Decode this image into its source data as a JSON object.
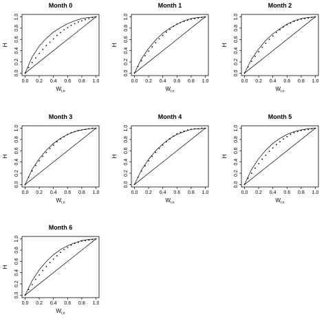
{
  "colors": {
    "background": "#ffffff",
    "foreground": "#000000"
  },
  "chart_data": [
    {
      "type": "scatter",
      "title": "Month 0",
      "xlabel": "W",
      "xlabel_sub": "t,n",
      "ylabel": "H",
      "xlim": [
        0,
        1
      ],
      "ylim": [
        0,
        1
      ],
      "xticks": [
        "0.0",
        "0.2",
        "0.4",
        "0.6",
        "0.8",
        "1.0"
      ],
      "yticks": [
        "0.0",
        "0.2",
        "0.4",
        "0.6",
        "0.8",
        "1.0"
      ],
      "grid": false,
      "legend": "none",
      "series": [
        {
          "kind": "points",
          "x": [
            0.0,
            0.05,
            0.1,
            0.15,
            0.2,
            0.25,
            0.3,
            0.35,
            0.4,
            0.45,
            0.5,
            0.55,
            0.6,
            0.65,
            0.7,
            0.75,
            0.8,
            0.85,
            0.9,
            0.95,
            1.0
          ],
          "y": [
            0.0,
            0.1,
            0.19,
            0.27,
            0.35,
            0.42,
            0.49,
            0.55,
            0.61,
            0.67,
            0.72,
            0.77,
            0.81,
            0.85,
            0.88,
            0.91,
            0.93,
            0.95,
            0.97,
            0.99,
            1.0
          ]
        },
        {
          "kind": "line",
          "x": [
            0.0,
            0.1,
            0.2,
            0.3,
            0.4,
            0.5,
            0.6,
            0.7,
            0.8,
            0.9,
            1.0
          ],
          "y": [
            0.0,
            0.29,
            0.48,
            0.62,
            0.73,
            0.81,
            0.88,
            0.93,
            0.97,
            0.99,
            1.0
          ]
        },
        {
          "kind": "diagonal",
          "x": [
            0,
            1
          ],
          "y": [
            0,
            1
          ]
        }
      ]
    },
    {
      "type": "scatter",
      "title": "Month 1",
      "xlabel": "W",
      "xlabel_sub": "t,n",
      "ylabel": "H",
      "xlim": [
        0,
        1
      ],
      "ylim": [
        0,
        1
      ],
      "xticks": [
        "0.0",
        "0.2",
        "0.4",
        "0.6",
        "0.8",
        "1.0"
      ],
      "yticks": [
        "0.0",
        "0.2",
        "0.4",
        "0.6",
        "0.8",
        "1.0"
      ],
      "grid": false,
      "legend": "none",
      "series": [
        {
          "kind": "points",
          "x": [
            0.0,
            0.05,
            0.1,
            0.15,
            0.2,
            0.25,
            0.3,
            0.35,
            0.4,
            0.45,
            0.5,
            0.55,
            0.6,
            0.65,
            0.7,
            0.75,
            0.8,
            0.85,
            0.9,
            0.95,
            1.0
          ],
          "y": [
            0.0,
            0.12,
            0.22,
            0.31,
            0.39,
            0.47,
            0.54,
            0.61,
            0.67,
            0.73,
            0.78,
            0.83,
            0.87,
            0.9,
            0.92,
            0.94,
            0.96,
            0.97,
            0.98,
            0.99,
            1.0
          ]
        },
        {
          "kind": "line",
          "x": [
            0.0,
            0.1,
            0.2,
            0.3,
            0.4,
            0.5,
            0.6,
            0.7,
            0.8,
            0.9,
            1.0
          ],
          "y": [
            0.0,
            0.26,
            0.44,
            0.59,
            0.71,
            0.8,
            0.87,
            0.93,
            0.97,
            0.99,
            1.0
          ]
        },
        {
          "kind": "diagonal",
          "x": [
            0,
            1
          ],
          "y": [
            0,
            1
          ]
        }
      ]
    },
    {
      "type": "scatter",
      "title": "Month 2",
      "xlabel": "W",
      "xlabel_sub": "t,n",
      "ylabel": "H",
      "xlim": [
        0,
        1
      ],
      "ylim": [
        0,
        1
      ],
      "xticks": [
        "0.0",
        "0.2",
        "0.4",
        "0.6",
        "0.8",
        "1.0"
      ],
      "yticks": [
        "0.0",
        "0.2",
        "0.4",
        "0.6",
        "0.8",
        "1.0"
      ],
      "grid": false,
      "legend": "none",
      "series": [
        {
          "kind": "points",
          "x": [
            0.0,
            0.05,
            0.1,
            0.15,
            0.2,
            0.25,
            0.3,
            0.35,
            0.4,
            0.45,
            0.5,
            0.55,
            0.6,
            0.65,
            0.7,
            0.75,
            0.8,
            0.85,
            0.9,
            0.95,
            1.0
          ],
          "y": [
            0.0,
            0.11,
            0.21,
            0.3,
            0.38,
            0.46,
            0.53,
            0.6,
            0.66,
            0.72,
            0.77,
            0.82,
            0.86,
            0.89,
            0.92,
            0.94,
            0.96,
            0.97,
            0.98,
            0.99,
            1.0
          ]
        },
        {
          "kind": "line",
          "x": [
            0.0,
            0.1,
            0.2,
            0.3,
            0.4,
            0.5,
            0.6,
            0.7,
            0.8,
            0.9,
            1.0
          ],
          "y": [
            0.0,
            0.25,
            0.43,
            0.58,
            0.7,
            0.79,
            0.87,
            0.93,
            0.97,
            0.99,
            1.0
          ]
        },
        {
          "kind": "diagonal",
          "x": [
            0,
            1
          ],
          "y": [
            0,
            1
          ]
        }
      ]
    },
    {
      "type": "scatter",
      "title": "Month 3",
      "xlabel": "W",
      "xlabel_sub": "t,n",
      "ylabel": "H",
      "xlim": [
        0,
        1
      ],
      "ylim": [
        0,
        1
      ],
      "xticks": [
        "0.0",
        "0.2",
        "0.4",
        "0.6",
        "0.8",
        "1.0"
      ],
      "yticks": [
        "0.0",
        "0.2",
        "0.4",
        "0.6",
        "0.8",
        "1.0"
      ],
      "grid": false,
      "legend": "none",
      "series": [
        {
          "kind": "points",
          "x": [
            0.0,
            0.05,
            0.1,
            0.15,
            0.2,
            0.25,
            0.3,
            0.35,
            0.4,
            0.45,
            0.5,
            0.55,
            0.6,
            0.65,
            0.7,
            0.75,
            0.8,
            0.85,
            0.9,
            0.95,
            1.0
          ],
          "y": [
            0.0,
            0.13,
            0.24,
            0.34,
            0.42,
            0.5,
            0.57,
            0.64,
            0.7,
            0.76,
            0.81,
            0.85,
            0.89,
            0.92,
            0.94,
            0.96,
            0.97,
            0.98,
            0.99,
            1.0,
            1.0
          ]
        },
        {
          "kind": "line",
          "x": [
            0.0,
            0.1,
            0.2,
            0.3,
            0.4,
            0.5,
            0.6,
            0.7,
            0.8,
            0.9,
            1.0
          ],
          "y": [
            0.0,
            0.27,
            0.46,
            0.61,
            0.73,
            0.82,
            0.89,
            0.94,
            0.97,
            0.99,
            1.0
          ]
        },
        {
          "kind": "diagonal",
          "x": [
            0,
            1
          ],
          "y": [
            0,
            1
          ]
        }
      ]
    },
    {
      "type": "scatter",
      "title": "Month 4",
      "xlabel": "W",
      "xlabel_sub": "t,n",
      "ylabel": "H",
      "xlim": [
        0,
        1
      ],
      "ylim": [
        0,
        1
      ],
      "xticks": [
        "0.0",
        "0.2",
        "0.4",
        "0.6",
        "0.8",
        "1.0"
      ],
      "yticks": [
        "0.0",
        "0.2",
        "0.4",
        "0.6",
        "0.8",
        "1.0"
      ],
      "grid": false,
      "legend": "none",
      "series": [
        {
          "kind": "points",
          "x": [
            0.0,
            0.05,
            0.1,
            0.15,
            0.2,
            0.25,
            0.3,
            0.35,
            0.4,
            0.45,
            0.5,
            0.55,
            0.6,
            0.65,
            0.7,
            0.75,
            0.8,
            0.85,
            0.9,
            0.95,
            1.0
          ],
          "y": [
            0.0,
            0.13,
            0.24,
            0.33,
            0.42,
            0.5,
            0.57,
            0.64,
            0.7,
            0.76,
            0.81,
            0.86,
            0.9,
            0.93,
            0.95,
            0.97,
            0.98,
            0.99,
            0.99,
            1.0,
            1.0
          ]
        },
        {
          "kind": "line",
          "x": [
            0.0,
            0.1,
            0.2,
            0.3,
            0.4,
            0.5,
            0.6,
            0.7,
            0.8,
            0.9,
            1.0
          ],
          "y": [
            0.0,
            0.26,
            0.45,
            0.6,
            0.72,
            0.82,
            0.89,
            0.94,
            0.98,
            0.99,
            1.0
          ]
        },
        {
          "kind": "diagonal",
          "x": [
            0,
            1
          ],
          "y": [
            0,
            1
          ]
        }
      ]
    },
    {
      "type": "scatter",
      "title": "Month 5",
      "xlabel": "W",
      "xlabel_sub": "t,n",
      "ylabel": "H",
      "xlim": [
        0,
        1
      ],
      "ylim": [
        0,
        1
      ],
      "xticks": [
        "0.0",
        "0.2",
        "0.4",
        "0.6",
        "0.8",
        "1.0"
      ],
      "yticks": [
        "0.0",
        "0.2",
        "0.4",
        "0.6",
        "0.8",
        "1.0"
      ],
      "grid": false,
      "legend": "none",
      "series": [
        {
          "kind": "points",
          "x": [
            0.0,
            0.05,
            0.1,
            0.15,
            0.2,
            0.25,
            0.3,
            0.35,
            0.4,
            0.45,
            0.5,
            0.55,
            0.6,
            0.65,
            0.7,
            0.75,
            0.8,
            0.85,
            0.9,
            0.95,
            1.0
          ],
          "y": [
            0.0,
            0.11,
            0.2,
            0.29,
            0.37,
            0.45,
            0.52,
            0.59,
            0.65,
            0.71,
            0.76,
            0.81,
            0.85,
            0.89,
            0.92,
            0.94,
            0.96,
            0.97,
            0.98,
            0.99,
            1.0
          ]
        },
        {
          "kind": "line",
          "x": [
            0.0,
            0.1,
            0.2,
            0.3,
            0.4,
            0.5,
            0.6,
            0.7,
            0.8,
            0.9,
            1.0
          ],
          "y": [
            0.0,
            0.27,
            0.46,
            0.61,
            0.73,
            0.82,
            0.89,
            0.94,
            0.97,
            0.99,
            1.0
          ]
        },
        {
          "kind": "diagonal",
          "x": [
            0,
            1
          ],
          "y": [
            0,
            1
          ]
        }
      ]
    },
    {
      "type": "scatter",
      "title": "Month 6",
      "xlabel": "W",
      "xlabel_sub": "t,n",
      "ylabel": "H",
      "xlim": [
        0,
        1
      ],
      "ylim": [
        0,
        1
      ],
      "xticks": [
        "0.0",
        "0.2",
        "0.4",
        "0.6",
        "0.8",
        "1.0"
      ],
      "yticks": [
        "0.0",
        "0.2",
        "0.4",
        "0.6",
        "0.8",
        "1.0"
      ],
      "grid": false,
      "legend": "none",
      "series": [
        {
          "kind": "points",
          "x": [
            0.0,
            0.05,
            0.1,
            0.15,
            0.2,
            0.25,
            0.3,
            0.35,
            0.4,
            0.45,
            0.5,
            0.55,
            0.6,
            0.65,
            0.7,
            0.75,
            0.8,
            0.85,
            0.9,
            0.95,
            1.0
          ],
          "y": [
            0.0,
            0.1,
            0.19,
            0.28,
            0.36,
            0.44,
            0.51,
            0.58,
            0.64,
            0.7,
            0.76,
            0.81,
            0.85,
            0.89,
            0.92,
            0.94,
            0.96,
            0.97,
            0.98,
            0.99,
            1.0
          ]
        },
        {
          "kind": "line",
          "x": [
            0.0,
            0.1,
            0.2,
            0.3,
            0.4,
            0.5,
            0.6,
            0.7,
            0.8,
            0.9,
            1.0
          ],
          "y": [
            0.0,
            0.26,
            0.45,
            0.6,
            0.72,
            0.81,
            0.88,
            0.93,
            0.97,
            0.99,
            1.0
          ]
        },
        {
          "kind": "diagonal",
          "x": [
            0,
            1
          ],
          "y": [
            0,
            1
          ]
        }
      ]
    }
  ]
}
